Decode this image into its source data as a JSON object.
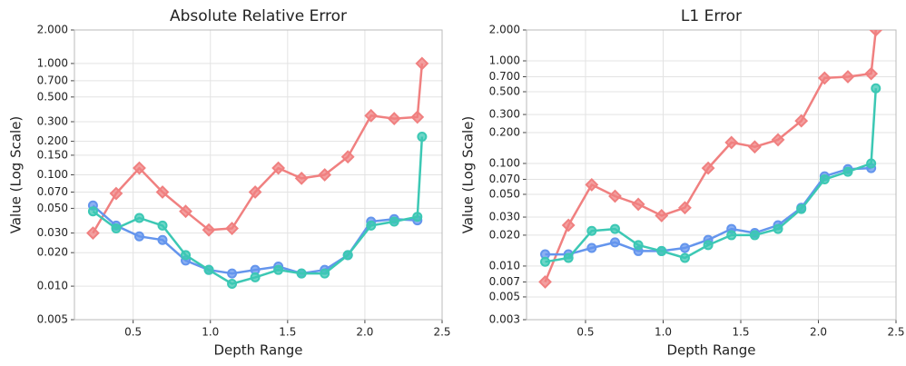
{
  "chart_data": [
    {
      "type": "line",
      "title": "Absolute Relative Error",
      "xlabel": "Depth Range",
      "ylabel": "Value (Log Scale)",
      "log_y": true,
      "grid": true,
      "xlim": [
        0.12,
        2.5
      ],
      "xticks": [
        0.5,
        {
          "value": 1,
          "label": "1.0"
        },
        1.5,
        {
          "value": 2,
          "label": "2.0"
        },
        2.5
      ],
      "ylim": [
        0.005,
        2
      ],
      "yticks": [
        {
          "value": 0.005,
          "label": "0.005"
        },
        {
          "value": 0.01,
          "label": "0.010"
        },
        {
          "value": 0.02,
          "label": "0.020"
        },
        {
          "value": 0.03,
          "label": "0.030"
        },
        {
          "value": 0.05,
          "label": "0.050"
        },
        {
          "value": 0.07,
          "label": "0.070"
        },
        {
          "value": 0.1,
          "label": "0.100"
        },
        {
          "value": 0.15,
          "label": "0.150"
        },
        {
          "value": 0.2,
          "label": "0.200"
        },
        {
          "value": 0.3,
          "label": "0.300"
        },
        {
          "value": 0.5,
          "label": "0.500"
        },
        {
          "value": 0.7,
          "label": "0.700"
        },
        {
          "value": 1,
          "label": "1.000"
        },
        {
          "value": 2,
          "label": "2.000"
        }
      ],
      "series": [
        {
          "color": "#f08080",
          "marker": "diamond",
          "x": [
            0.24,
            0.39,
            0.54,
            0.69,
            0.84,
            0.99,
            1.14,
            1.29,
            1.44,
            1.59,
            1.74,
            1.89,
            2.04,
            2.19,
            2.34,
            2.37
          ],
          "values": [
            0.03,
            0.068,
            0.115,
            0.07,
            0.047,
            0.032,
            0.033,
            0.07,
            0.115,
            0.093,
            0.1,
            0.145,
            0.34,
            0.32,
            0.33,
            1.0
          ]
        },
        {
          "color": "#6495ed",
          "marker": "circle",
          "x": [
            0.24,
            0.39,
            0.54,
            0.69,
            0.84,
            0.99,
            1.14,
            1.29,
            1.44,
            1.59,
            1.74,
            1.89,
            2.04,
            2.19,
            2.34
          ],
          "values": [
            0.053,
            0.035,
            0.028,
            0.026,
            0.017,
            0.014,
            0.013,
            0.014,
            0.015,
            0.013,
            0.014,
            0.019,
            0.038,
            0.04,
            0.039
          ]
        },
        {
          "color": "#3cc8b4",
          "marker": "circle",
          "x": [
            0.24,
            0.39,
            0.54,
            0.69,
            0.84,
            0.99,
            1.14,
            1.29,
            1.44,
            1.59,
            1.74,
            1.89,
            2.04,
            2.19,
            2.34,
            2.37
          ],
          "values": [
            0.047,
            0.033,
            0.041,
            0.035,
            0.019,
            0.014,
            0.0105,
            0.012,
            0.014,
            0.013,
            0.013,
            0.019,
            0.035,
            0.038,
            0.042,
            0.22
          ]
        }
      ]
    },
    {
      "type": "line",
      "title": "L1 Error",
      "xlabel": "Depth Range",
      "ylabel": "Value (Log Scale)",
      "log_y": true,
      "grid": true,
      "xlim": [
        0.12,
        2.5
      ],
      "xticks": [
        0.5,
        {
          "value": 1,
          "label": "1.0"
        },
        1.5,
        {
          "value": 2,
          "label": "2.0"
        },
        2.5
      ],
      "ylim": [
        0.003,
        2
      ],
      "yticks": [
        {
          "value": 0.003,
          "label": "0.003"
        },
        {
          "value": 0.005,
          "label": "0.005"
        },
        {
          "value": 0.007,
          "label": "0.007"
        },
        {
          "value": 0.01,
          "label": "0.010"
        },
        {
          "value": 0.02,
          "label": "0.020"
        },
        {
          "value": 0.03,
          "label": "0.030"
        },
        {
          "value": 0.05,
          "label": "0.050"
        },
        {
          "value": 0.07,
          "label": "0.070"
        },
        {
          "value": 0.1,
          "label": "0.100"
        },
        {
          "value": 0.2,
          "label": "0.200"
        },
        {
          "value": 0.3,
          "label": "0.300"
        },
        {
          "value": 0.5,
          "label": "0.500"
        },
        {
          "value": 0.7,
          "label": "0.700"
        },
        {
          "value": 1,
          "label": "1.000"
        },
        {
          "value": 2,
          "label": "2.000"
        }
      ],
      "series": [
        {
          "color": "#f08080",
          "marker": "diamond",
          "x": [
            0.24,
            0.39,
            0.54,
            0.69,
            0.84,
            0.99,
            1.14,
            1.29,
            1.44,
            1.59,
            1.74,
            1.89,
            2.04,
            2.19,
            2.34,
            2.37
          ],
          "values": [
            0.007,
            0.025,
            0.062,
            0.048,
            0.04,
            0.031,
            0.037,
            0.09,
            0.16,
            0.145,
            0.17,
            0.26,
            0.68,
            0.7,
            0.75,
            2.0
          ]
        },
        {
          "color": "#6495ed",
          "marker": "circle",
          "x": [
            0.24,
            0.39,
            0.54,
            0.69,
            0.84,
            0.99,
            1.14,
            1.29,
            1.44,
            1.59,
            1.74,
            1.89,
            2.04,
            2.19,
            2.34
          ],
          "values": [
            0.013,
            0.013,
            0.015,
            0.017,
            0.014,
            0.014,
            0.015,
            0.018,
            0.023,
            0.021,
            0.025,
            0.037,
            0.075,
            0.088,
            0.09
          ]
        },
        {
          "color": "#3cc8b4",
          "marker": "circle",
          "x": [
            0.24,
            0.39,
            0.54,
            0.69,
            0.84,
            0.99,
            1.14,
            1.29,
            1.44,
            1.59,
            1.74,
            1.89,
            2.04,
            2.19,
            2.34,
            2.37
          ],
          "values": [
            0.011,
            0.012,
            0.022,
            0.023,
            0.016,
            0.014,
            0.012,
            0.016,
            0.02,
            0.02,
            0.023,
            0.036,
            0.07,
            0.083,
            0.1,
            0.54
          ]
        }
      ]
    }
  ]
}
